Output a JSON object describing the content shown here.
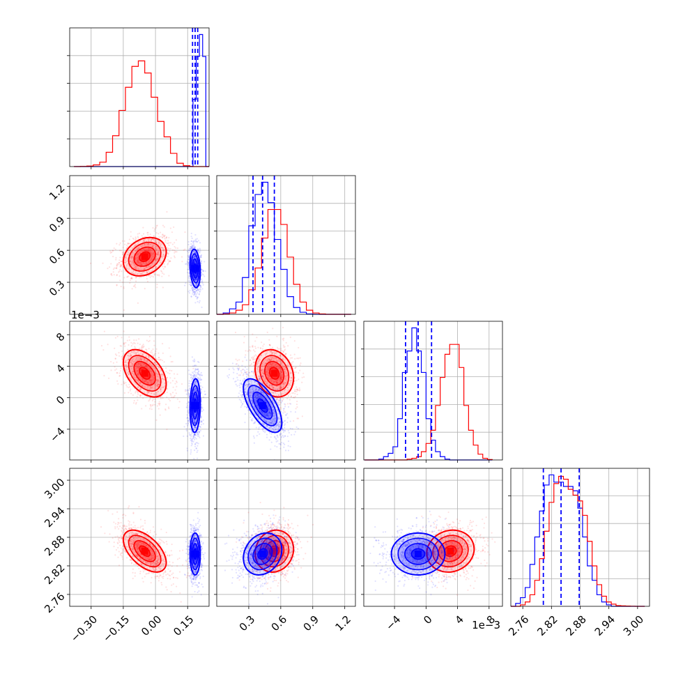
{
  "chart_data": {
    "type": "corner",
    "grid": true,
    "series": [
      {
        "color": "#ff0000",
        "quantiles_shown": false,
        "mean": [
          -0.05,
          0.54,
          0.0031,
          2.851
        ],
        "std": [
          0.05,
          0.09,
          0.0015,
          0.022
        ],
        "corr": [
          [
            1.0,
            0.25,
            -0.45,
            -0.55
          ],
          [
            0.25,
            1.0,
            -0.2,
            0.1
          ],
          [
            -0.45,
            -0.2,
            1.0,
            0.1
          ],
          [
            -0.55,
            0.1,
            0.1,
            1.0
          ]
        ]
      },
      {
        "color": "#0000ff",
        "quantiles_shown": true,
        "mean": [
          0.185,
          0.43,
          -0.001,
          2.845
        ],
        "std": [
          0.012,
          0.09,
          0.0017,
          0.022
        ],
        "corr": [
          [
            1.0,
            -0.2,
            0.1,
            0.0
          ],
          [
            -0.2,
            1.0,
            -0.65,
            0.2
          ],
          [
            0.1,
            -0.65,
            1.0,
            0.0
          ],
          [
            0.0,
            0.2,
            0.0,
            1.0
          ]
        ]
      }
    ],
    "histograms": [
      {
        "param": 0,
        "bins": [
          -0.38,
          -0.35,
          -0.32,
          -0.29,
          -0.26,
          -0.23,
          -0.2,
          -0.17,
          -0.14,
          -0.11,
          -0.08,
          -0.05,
          -0.02,
          0.01,
          0.04,
          0.07,
          0.1,
          0.13,
          0.16,
          0.175,
          0.19,
          0.205,
          0.22,
          0.235,
          0.25
        ],
        "red_counts": [
          0,
          0.2,
          0.5,
          1.5,
          4,
          13,
          28,
          51,
          72,
          91,
          96,
          85,
          63,
          41,
          27,
          12,
          3,
          0.8,
          0.2,
          0,
          0,
          0,
          0,
          0
        ],
        "blue_counts": [
          0,
          0,
          0,
          0,
          0,
          0,
          0,
          0,
          0,
          0,
          0,
          0,
          0,
          0,
          0,
          0,
          0,
          0,
          0,
          61,
          100,
          120,
          100,
          0
        ],
        "blue_quantiles": [
          0.173,
          0.185,
          0.197
        ]
      },
      {
        "param": 1,
        "bins": [
          0.0,
          0.06,
          0.12,
          0.18,
          0.24,
          0.3,
          0.36,
          0.42,
          0.48,
          0.54,
          0.6,
          0.66,
          0.72,
          0.78,
          0.84,
          0.9,
          0.96,
          1.02,
          1.08,
          1.14,
          1.2,
          1.26
        ],
        "red_counts": [
          0,
          0.3,
          1,
          3,
          7,
          18,
          34,
          56,
          77,
          77,
          66,
          42,
          22,
          9,
          3,
          1,
          0.3,
          0,
          0,
          0,
          0
        ],
        "blue_counts": [
          0,
          1,
          4,
          9,
          27,
          65,
          88,
          97,
          82,
          55,
          33,
          13,
          5,
          1.5,
          0.3,
          0,
          0,
          0,
          0,
          0,
          0
        ],
        "blue_quantiles": [
          0.34,
          0.43,
          0.54
        ]
      },
      {
        "param": 2,
        "bins": [
          -0.0078,
          -0.0072,
          -0.0066,
          -0.006,
          -0.0054,
          -0.0048,
          -0.0042,
          -0.0036,
          -0.003,
          -0.0024,
          -0.0018,
          -0.0012,
          -0.0006,
          0.0,
          0.0006,
          0.0012,
          0.0018,
          0.0024,
          0.003,
          0.0036,
          0.0042,
          0.0048,
          0.0054,
          0.006,
          0.0066,
          0.0072,
          0.0078,
          0.0084
        ],
        "red_counts": [
          0,
          0,
          0,
          0,
          0,
          0,
          0,
          0,
          0,
          0.5,
          1,
          2,
          5,
          10,
          18,
          33,
          50,
          64,
          70,
          70,
          56,
          33,
          18,
          9,
          3.5,
          1,
          0.3
        ],
        "blue_counts": [
          0,
          0,
          0,
          0.5,
          2,
          4,
          8,
          25,
          53,
          66,
          80,
          66,
          53,
          25,
          12,
          5,
          2,
          0.5,
          0,
          0,
          0,
          0,
          0,
          0,
          0,
          0,
          0
        ],
        "blue_quantiles": [
          -0.0026,
          -0.001,
          0.0007
        ]
      },
      {
        "param": 3,
        "bins": [
          2.735,
          2.745,
          2.755,
          2.765,
          2.775,
          2.785,
          2.795,
          2.805,
          2.815,
          2.825,
          2.835,
          2.845,
          2.855,
          2.865,
          2.875,
          2.885,
          2.895,
          2.905,
          2.915,
          2.925,
          2.935,
          2.945,
          2.955,
          2.965,
          2.975,
          2.985,
          2.995,
          3.005,
          3.015
        ],
        "red_counts": [
          0,
          0,
          1,
          3,
          8,
          18,
          33,
          52,
          72,
          85,
          90,
          88,
          81,
          77,
          73,
          63,
          45,
          28,
          15,
          7,
          3,
          1.5,
          0.5,
          0.3,
          0.2,
          0.1,
          0,
          0
        ],
        "blue_counts": [
          0,
          2,
          6,
          13,
          29,
          48,
          66,
          84,
          91,
          86,
          86,
          83,
          83,
          80,
          68,
          48,
          28,
          18,
          8,
          3,
          1,
          0,
          0,
          0,
          0,
          0,
          0,
          0
        ],
        "blue_quantiles": [
          2.803,
          2.84,
          2.878
        ]
      }
    ],
    "axes": [
      {
        "param": 0,
        "range": [
          -0.4,
          0.25
        ],
        "ticks": [
          -0.3,
          -0.15,
          0.0,
          0.15
        ],
        "tick_labels": [
          "−0.30",
          "−0.15",
          "0.00",
          "0.15"
        ],
        "offset_label": ""
      },
      {
        "param": 1,
        "range": [
          0.0,
          1.3
        ],
        "ticks": [
          0.3,
          0.6,
          0.9,
          1.2
        ],
        "tick_labels": [
          "0.3",
          "0.6",
          "0.9",
          "1.2"
        ],
        "offset_label": ""
      },
      {
        "param": 2,
        "range": [
          -0.0079,
          0.0097
        ],
        "ticks": [
          -0.004,
          0.0,
          0.004,
          0.008
        ],
        "tick_labels": [
          "−4",
          "0",
          "4",
          "8"
        ],
        "offset_label": "1e−3"
      },
      {
        "param": 3,
        "range": [
          2.735,
          3.025
        ],
        "ticks": [
          2.76,
          2.82,
          2.88,
          2.94,
          3.0
        ],
        "tick_labels": [
          "2.76",
          "2.82",
          "2.88",
          "2.94",
          "3.00"
        ],
        "offset_label": ""
      }
    ],
    "y_offset_labels": {
      "row_2": "1e−3"
    }
  }
}
